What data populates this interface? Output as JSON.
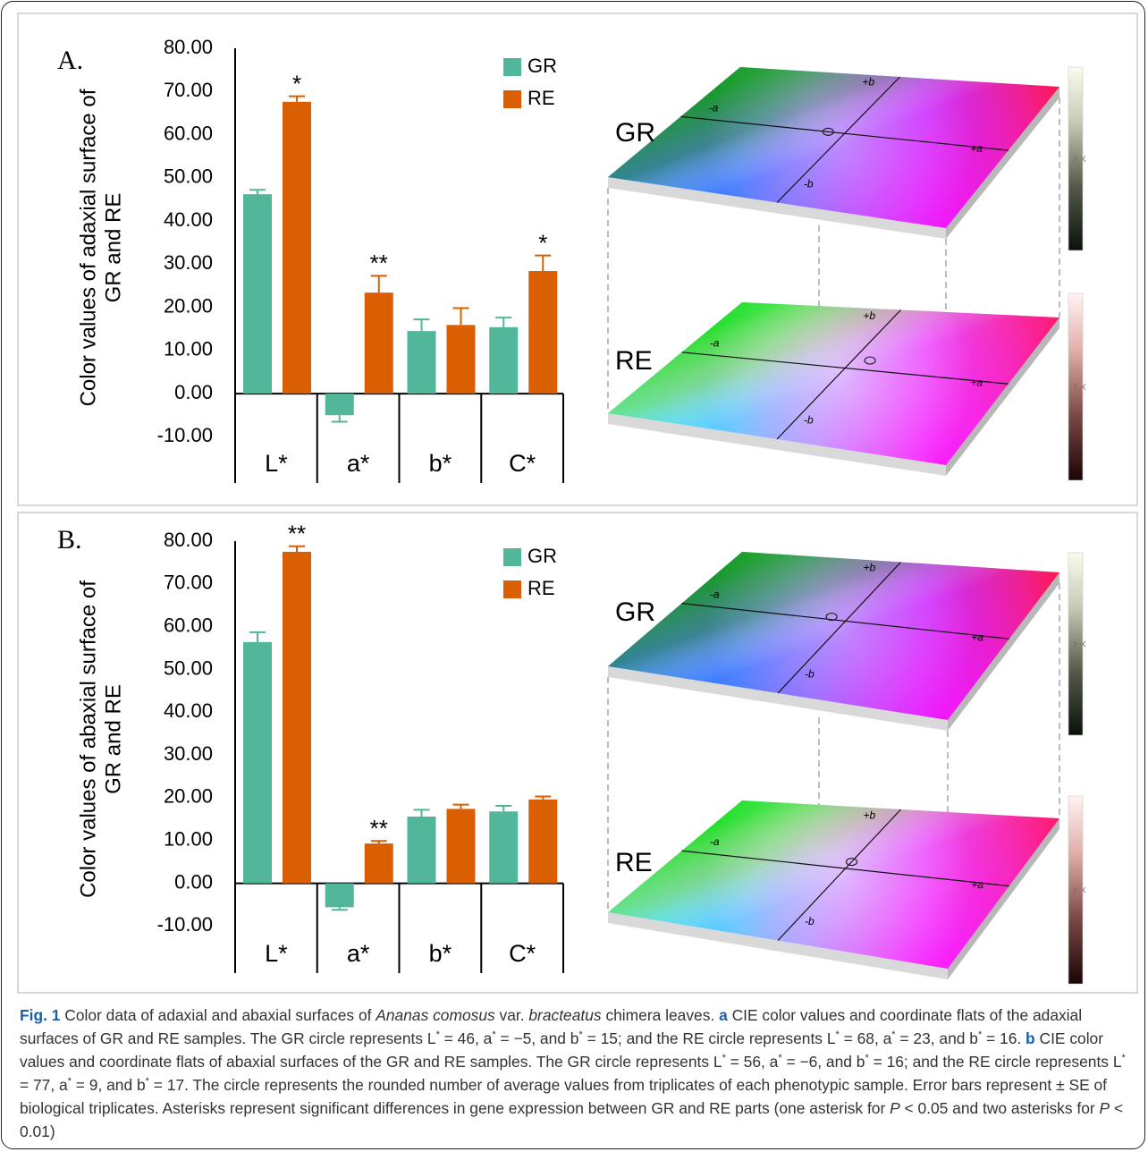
{
  "chart_data": [
    {
      "type": "bar",
      "panel_label": "A.",
      "ylabel": [
        "Color values of adaxial surface of",
        "GR and RE"
      ],
      "categories": [
        "L*",
        "a*",
        "b*",
        "C*"
      ],
      "series": [
        {
          "name": "GR",
          "color": "#52b69a",
          "values": [
            46.2,
            -5.0,
            14.5,
            15.4
          ],
          "errors": [
            1.0,
            1.5,
            2.7,
            2.2
          ],
          "annotations": [
            null,
            null,
            null,
            null
          ]
        },
        {
          "name": "RE",
          "color": "#d95f02",
          "values": [
            67.6,
            23.4,
            15.9,
            28.4
          ],
          "errors": [
            1.3,
            3.9,
            3.9,
            3.6
          ],
          "annotations": [
            "*",
            "**",
            null,
            "*"
          ]
        }
      ],
      "ylim": [
        -20.7,
        80
      ],
      "yticks": [
        {
          "value": 80,
          "label": "80.00"
        },
        {
          "value": 70,
          "label": "70.00"
        },
        {
          "value": 60,
          "label": "60.00"
        },
        {
          "value": 50,
          "label": "50.00"
        },
        {
          "value": 40,
          "label": "40.00"
        },
        {
          "value": 30,
          "label": "30.00"
        },
        {
          "value": 20,
          "label": "20.00"
        },
        {
          "value": 10,
          "label": "10.00"
        },
        {
          "value": 0,
          "label": "0.00"
        },
        {
          "value": -10,
          "label": "-10.00"
        }
      ],
      "legend": "upper right"
    },
    {
      "type": "bar",
      "panel_label": "B.",
      "ylabel": [
        "Color values of abaxial surface of",
        "GR and RE"
      ],
      "categories": [
        "L*",
        "a*",
        "b*",
        "C*"
      ],
      "series": [
        {
          "name": "GR",
          "color": "#52b69a",
          "values": [
            56.4,
            -5.6,
            15.6,
            16.8
          ],
          "errors": [
            2.3,
            0.6,
            1.6,
            1.3
          ],
          "annotations": [
            null,
            null,
            null,
            null
          ]
        },
        {
          "name": "RE",
          "color": "#d95f02",
          "values": [
            77.5,
            9.3,
            17.4,
            19.6
          ],
          "errors": [
            1.3,
            0.6,
            1.0,
            0.7
          ],
          "annotations": [
            "**",
            "**",
            null,
            null
          ]
        }
      ],
      "ylim": [
        -21,
        80
      ],
      "yticks": [
        {
          "value": 80,
          "label": "80.00"
        },
        {
          "value": 70,
          "label": "70.00"
        },
        {
          "value": 60,
          "label": "60.00"
        },
        {
          "value": 50,
          "label": "50.00"
        },
        {
          "value": 40,
          "label": "40.00"
        },
        {
          "value": 30,
          "label": "30.00"
        },
        {
          "value": 20,
          "label": "20.00"
        },
        {
          "value": 10,
          "label": "10.00"
        },
        {
          "value": 0,
          "label": "0.00"
        },
        {
          "value": -10,
          "label": "-10.00"
        }
      ],
      "legend": "upper right"
    }
  ],
  "color_flats": [
    {
      "upper": "GR",
      "lower": "RE",
      "axis_labels": [
        "-a",
        "+a",
        "-b",
        "+b"
      ]
    },
    {
      "upper": "GR",
      "lower": "RE",
      "axis_labels": [
        "-a",
        "+a",
        "-b",
        "+b"
      ]
    }
  ],
  "caption": {
    "runs": [
      {
        "text": "Fig. 1",
        "style": "bold"
      },
      {
        "text": " Color data of adaxial and abaxial surfaces of ",
        "style": "plain"
      },
      {
        "text": "Ananas comosus",
        "style": "italic"
      },
      {
        "text": " var. ",
        "style": "plain"
      },
      {
        "text": "bracteatus",
        "style": "italic"
      },
      {
        "text": " chimera leaves. ",
        "style": "plain"
      },
      {
        "text": "a",
        "style": "bold"
      },
      {
        "text": " CIE color values and coordinate flats of the adaxial surfaces of GR and RE samples. The GR circle represents L",
        "style": "plain"
      },
      {
        "text": "*",
        "style": "sup"
      },
      {
        "text": " = 46, a",
        "style": "plain"
      },
      {
        "text": "*",
        "style": "sup"
      },
      {
        "text": " = −5, and b",
        "style": "plain"
      },
      {
        "text": "*",
        "style": "sup"
      },
      {
        "text": " = 15; and the RE circle represents L",
        "style": "plain"
      },
      {
        "text": "*",
        "style": "sup"
      },
      {
        "text": " = 68, a",
        "style": "plain"
      },
      {
        "text": "*",
        "style": "sup"
      },
      {
        "text": " = 23, and b",
        "style": "plain"
      },
      {
        "text": "*",
        "style": "sup"
      },
      {
        "text": " = 16. ",
        "style": "plain"
      },
      {
        "text": "b",
        "style": "bold"
      },
      {
        "text": " CIE color values and coordinate flats of abaxial surfaces of the GR and RE samples. The GR circle represents L",
        "style": "plain"
      },
      {
        "text": "*",
        "style": "sup"
      },
      {
        "text": " = 56, a",
        "style": "plain"
      },
      {
        "text": "*",
        "style": "sup"
      },
      {
        "text": " = −6, and b",
        "style": "plain"
      },
      {
        "text": "*",
        "style": "sup"
      },
      {
        "text": " = 16; and the RE circle represents L",
        "style": "plain"
      },
      {
        "text": "*",
        "style": "sup"
      },
      {
        "text": " = 77, a",
        "style": "plain"
      },
      {
        "text": "*",
        "style": "sup"
      },
      {
        "text": " = 9, and b",
        "style": "plain"
      },
      {
        "text": "*",
        "style": "sup"
      },
      {
        "text": " = 17. The circle represents the rounded number of average values from triplicates of each phenotypic sample. Error bars represent ± SE of biological triplicates. Asterisks represent significant differences in gene expression between GR and RE parts (one asterisk for ",
        "style": "plain"
      },
      {
        "text": "P",
        "style": "italic"
      },
      {
        "text": " < 0.05 and two asterisks for ",
        "style": "plain"
      },
      {
        "text": "P",
        "style": "italic"
      },
      {
        "text": " < 0.01)",
        "style": "plain"
      }
    ]
  }
}
